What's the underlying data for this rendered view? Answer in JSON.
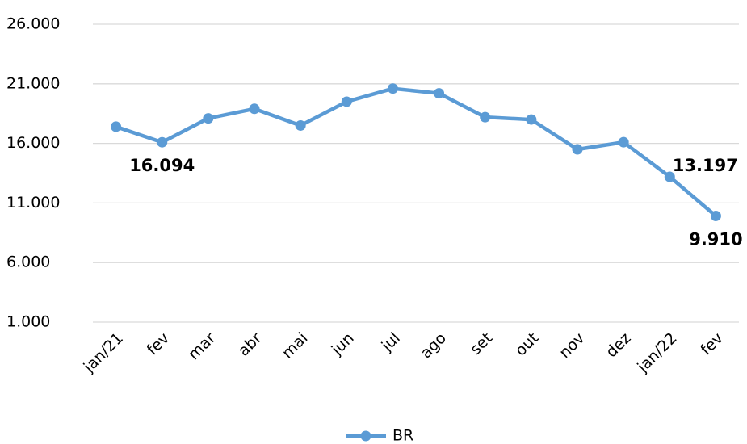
{
  "chart_data": {
    "type": "line",
    "categories": [
      "jan/21",
      "fev",
      "mar",
      "abr",
      "mai",
      "jun",
      "jul",
      "ago",
      "set",
      "out",
      "nov",
      "dez",
      "jan/22",
      "fev"
    ],
    "series": [
      {
        "name": "BR",
        "color": "#5b9bd5",
        "values": [
          17400,
          16094,
          18100,
          18900,
          17500,
          19500,
          20600,
          20200,
          18200,
          18000,
          15500,
          16100,
          13197,
          9910
        ],
        "value_labels": [
          null,
          "16.094",
          null,
          null,
          null,
          null,
          null,
          null,
          null,
          null,
          null,
          null,
          "13.197",
          "9.910"
        ]
      }
    ],
    "ylim": [
      1000,
      26000
    ],
    "yticks": [
      {
        "value": 1000,
        "label": "1.000"
      },
      {
        "value": 6000,
        "label": "6.000"
      },
      {
        "value": 11000,
        "label": "11.000"
      },
      {
        "value": 16000,
        "label": "16.000"
      },
      {
        "value": 21000,
        "label": "21.000"
      },
      {
        "value": 26000,
        "label": "26.000"
      }
    ],
    "grid": true,
    "legend": "bottom"
  }
}
